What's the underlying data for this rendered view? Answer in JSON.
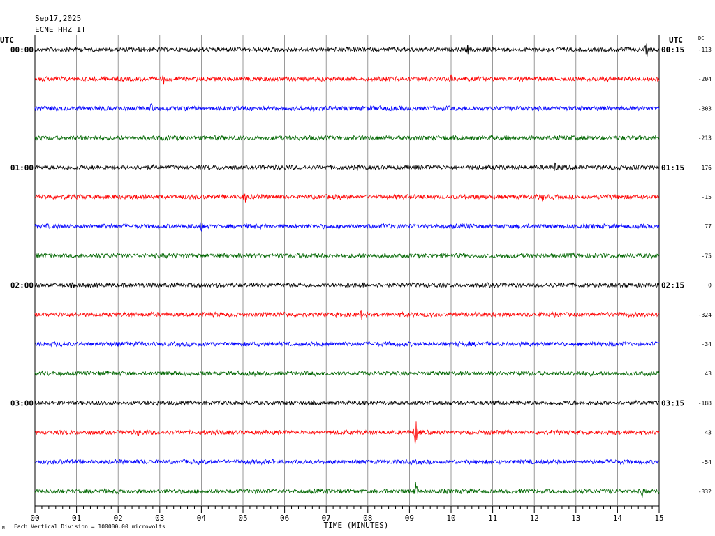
{
  "header": {
    "date": "Sep17,2025",
    "station": "ECNE HHZ IT"
  },
  "labels": {
    "utc_left": "UTC",
    "utc_right": "UTC",
    "dc": "DC",
    "x_axis_title": "TIME (MINUTES)",
    "footnote": "Each Vertical Division = 100000.00 microvolts",
    "corner_mark": "M"
  },
  "chart_data": {
    "type": "line",
    "title": "Sep17,2025 ECNE HHZ IT",
    "xlabel": "TIME (MINUTES)",
    "xlim": [
      0,
      15
    ],
    "x_ticks": [
      "00",
      "01",
      "02",
      "03",
      "04",
      "05",
      "06",
      "07",
      "08",
      "09",
      "10",
      "11",
      "12",
      "13",
      "14",
      "15"
    ],
    "grid": true,
    "trace_colors": [
      "#000000",
      "#ff0000",
      "#0000ff",
      "#006600"
    ],
    "left_time_labels": [
      "00:00",
      "01:00",
      "02:00",
      "03:00"
    ],
    "right_time_labels": [
      "00:15",
      "01:15",
      "02:15",
      "03:15"
    ],
    "dc_offsets": [
      "-113",
      "-204",
      "-303",
      "-213",
      "176",
      "-15",
      "77",
      "-75",
      "0",
      "-324",
      "-34",
      "43",
      "-188",
      "43",
      "-54",
      "-332"
    ],
    "events": [
      {
        "row": 0,
        "minute": 14.7,
        "amplitude": 12
      },
      {
        "row": 0,
        "minute": 10.4,
        "amplitude": 9
      },
      {
        "row": 1,
        "minute": 3.1,
        "amplitude": 9
      },
      {
        "row": 1,
        "minute": 10.0,
        "amplitude": 12
      },
      {
        "row": 2,
        "minute": 2.8,
        "amplitude": 10
      },
      {
        "row": 4,
        "minute": 12.5,
        "amplitude": 10
      },
      {
        "row": 5,
        "minute": 5.05,
        "amplitude": 11
      },
      {
        "row": 5,
        "minute": 12.2,
        "amplitude": 8
      },
      {
        "row": 6,
        "minute": 4.0,
        "amplitude": 9
      },
      {
        "row": 8,
        "minute": 7.9,
        "amplitude": 6
      },
      {
        "row": 9,
        "minute": 7.85,
        "amplitude": 9
      },
      {
        "row": 13,
        "minute": 9.15,
        "amplitude": 24
      },
      {
        "row": 13,
        "minute": 2.5,
        "amplitude": 8
      },
      {
        "row": 15,
        "minute": 9.15,
        "amplitude": 18
      },
      {
        "row": 15,
        "minute": 14.6,
        "amplitude": 9
      }
    ]
  }
}
